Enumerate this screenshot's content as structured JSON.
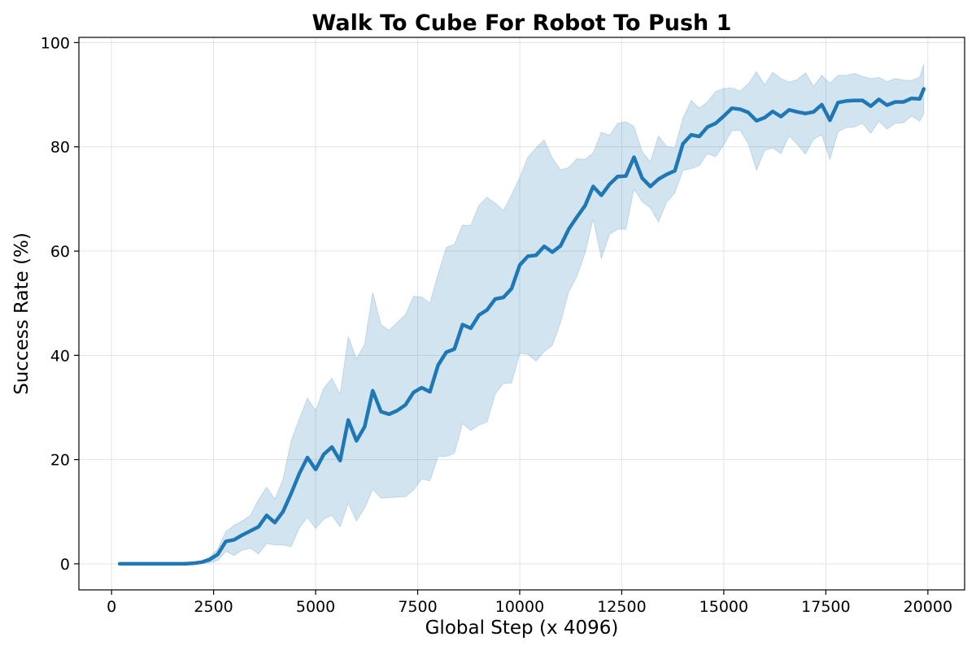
{
  "chart_data": {
    "type": "line",
    "title": "Walk To Cube For Robot To Push 1",
    "xlabel": "Global Step (x 4096)",
    "ylabel": "Success Rate (%)",
    "xlim": [
      -800,
      20900
    ],
    "ylim": [
      -5,
      101
    ],
    "xticks": [
      0,
      2500,
      5000,
      7500,
      10000,
      12500,
      15000,
      17500,
      20000
    ],
    "yticks": [
      0,
      20,
      40,
      60,
      80,
      100
    ],
    "grid": true,
    "colors": {
      "line": "#1f77b4",
      "band": "#1f77b4",
      "band_opacity": 0.2
    },
    "series": [
      {
        "x": [
          200,
          400,
          600,
          800,
          1000,
          1200,
          1400,
          1600,
          1800,
          2000,
          2200,
          2400,
          2600,
          2800,
          3000,
          3200,
          3400,
          3600,
          3800,
          4000,
          4200,
          4400,
          4600,
          4800,
          5000,
          5200,
          5400,
          5600,
          5800,
          6000,
          6200,
          6400,
          6600,
          6800,
          7000,
          7200,
          7400,
          7600,
          7800,
          8000,
          8200,
          8400,
          8600,
          8800,
          9000,
          9200,
          9400,
          9600,
          9800,
          10000,
          10200,
          10400,
          10600,
          10800,
          11000,
          11200,
          11400,
          11600,
          11800,
          12000,
          12200,
          12400,
          12600,
          12800,
          13000,
          13200,
          13400,
          13600,
          13800,
          14000,
          14200,
          14400,
          14600,
          14800,
          15000,
          15200,
          15400,
          15600,
          15800,
          16000,
          16200,
          16400,
          16600,
          16800,
          17000,
          17200,
          17400,
          17600,
          17800,
          18000,
          18200,
          18400,
          18600,
          18800,
          19000,
          19200,
          19400,
          19600,
          19800,
          19900
        ],
        "mean": [
          0,
          0,
          0,
          0,
          0,
          0,
          0,
          0,
          0,
          0.1,
          0.3,
          0.8,
          1.8,
          4.3,
          4.6,
          5.5,
          6.3,
          7.1,
          9.3,
          7.9,
          10,
          13.5,
          17.3,
          20.4,
          18.1,
          21,
          22.4,
          19.8,
          27.6,
          23.6,
          26.3,
          33.2,
          29.2,
          28.7,
          29.4,
          30.5,
          32.9,
          33.8,
          33,
          38.1,
          40.6,
          41.2,
          45.9,
          45.2,
          47.7,
          48.7,
          50.8,
          51.1,
          52.8,
          57.3,
          59,
          59.2,
          60.9,
          59.8,
          61,
          64.2,
          66.5,
          68.7,
          72.4,
          70.7,
          72.8,
          74.3,
          74.4,
          78,
          74,
          72.4,
          73.8,
          74.7,
          75.4,
          80.6,
          82.3,
          82,
          83.8,
          84.5,
          85.9,
          87.4,
          87.2,
          86.6,
          85,
          85.6,
          86.8,
          85.8,
          87.1,
          86.7,
          86.4,
          86.7,
          88.1,
          85.1,
          88.5,
          88.8,
          88.9,
          88.9,
          87.8,
          89.1,
          88,
          88.6,
          88.6,
          89.3,
          89.2,
          91.1
        ],
        "upper": [
          0,
          0,
          0,
          0,
          0,
          0,
          0,
          0,
          0,
          0.2,
          0.5,
          1.3,
          2.8,
          6.2,
          7.4,
          8.2,
          9.3,
          12.3,
          14.7,
          12.4,
          16.2,
          23.6,
          27.8,
          31.8,
          29.4,
          33.7,
          35.6,
          32.5,
          43.6,
          39.3,
          42.1,
          52.1,
          45.9,
          44.8,
          46.3,
          47.8,
          51.3,
          51.2,
          50,
          55.6,
          60.7,
          61.3,
          65,
          64.9,
          68.8,
          70.3,
          69.2,
          67.8,
          70.8,
          74.1,
          78,
          79.8,
          81.3,
          77.8,
          75.6,
          76,
          77.7,
          77.6,
          78.8,
          82.8,
          82.2,
          84.5,
          84.8,
          83.9,
          79.1,
          77.1,
          82.1,
          80.1,
          79.8,
          85.5,
          88.9,
          87.4,
          88.6,
          90.6,
          91.2,
          91.3,
          90.7,
          92.1,
          94.4,
          91.9,
          94.3,
          93.1,
          92.4,
          92.9,
          94.2,
          91.6,
          93.7,
          92.2,
          93.7,
          93.7,
          94.1,
          93.5,
          93.1,
          93.3,
          92.5,
          93.1,
          92.8,
          92.7,
          93.4,
          95.9
        ],
        "lower": [
          0,
          0,
          0,
          0,
          0,
          0,
          0,
          0,
          0,
          0,
          0,
          0.2,
          0.6,
          2.4,
          1.6,
          2.6,
          3,
          1.9,
          3.9,
          3.6,
          3.6,
          3.3,
          6.9,
          8.9,
          6.8,
          8.6,
          9.3,
          7.1,
          11.6,
          8.2,
          10.7,
          14.3,
          12.6,
          12.7,
          12.8,
          12.9,
          14.2,
          16.3,
          15.9,
          20.6,
          20.6,
          21.2,
          26.9,
          25.6,
          26.6,
          27.2,
          32.6,
          34.6,
          34.7,
          40.4,
          40.2,
          38.9,
          40.7,
          41.9,
          46.3,
          52.2,
          55.1,
          59.6,
          66.2,
          58.6,
          63.2,
          64.2,
          64.2,
          71.9,
          69.5,
          68.3,
          65.6,
          69.4,
          71.1,
          75.5,
          75.8,
          76.4,
          78.7,
          78.1,
          80.4,
          83.1,
          83.2,
          80.6,
          75.5,
          79.3,
          79.8,
          78.7,
          82.1,
          80.5,
          78.6,
          81.5,
          82.3,
          77.6,
          82.9,
          83.7,
          83.8,
          84.5,
          82.6,
          84.9,
          83.4,
          84.5,
          84.6,
          85.9,
          84.9,
          86.4
        ]
      }
    ]
  }
}
